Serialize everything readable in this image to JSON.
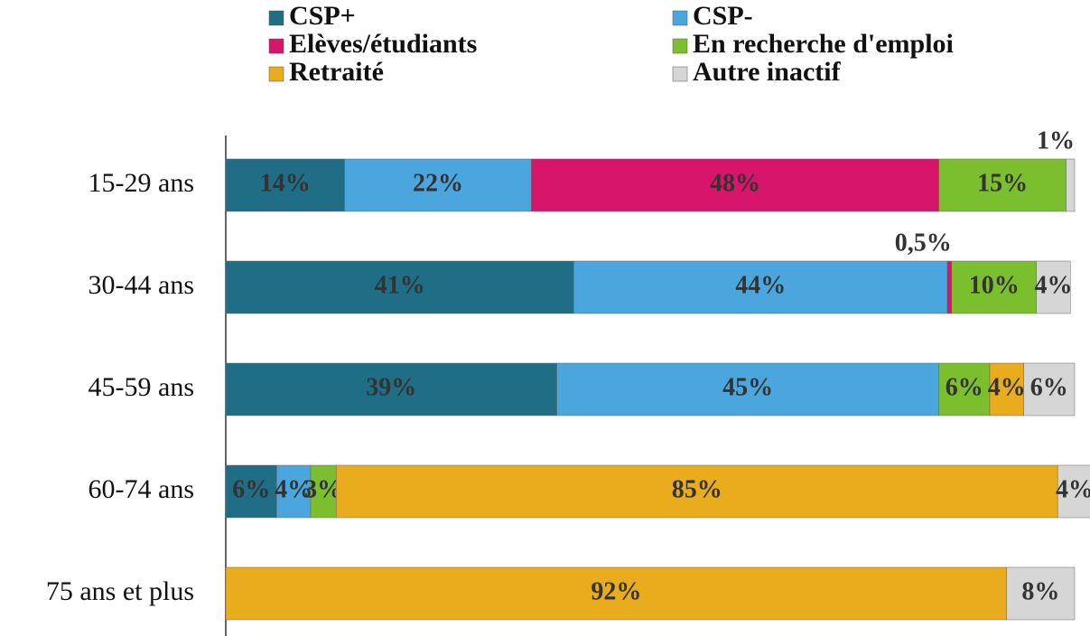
{
  "chart_data": {
    "type": "stacked_barh",
    "categories": [
      "15-29 ans",
      "30-44 ans",
      "45-59 ans",
      "60-74 ans",
      "75 ans et plus"
    ],
    "xlim": [
      0,
      100
    ],
    "legend": "top",
    "series": [
      {
        "name": "CSP+",
        "color": "#1f6e86",
        "values": [
          14,
          41,
          39,
          6,
          null
        ],
        "value_labels": [
          "14%",
          "41%",
          "39%",
          "6%",
          null
        ]
      },
      {
        "name": "CSP-",
        "color": "#4aa6dc",
        "values": [
          22,
          44,
          45,
          4,
          null
        ],
        "value_labels": [
          "22%",
          "44%",
          "45%",
          "4%",
          null
        ]
      },
      {
        "name": "Elèves/étudiants",
        "color": "#d6156b",
        "values": [
          48,
          0.5,
          null,
          null,
          null
        ],
        "value_labels": [
          "48%",
          "0,5%",
          null,
          null,
          null
        ]
      },
      {
        "name": "En recherche d'emploi",
        "color": "#7cbf2e",
        "values": [
          15,
          10,
          6,
          3,
          null
        ],
        "value_labels": [
          "15%",
          "10%",
          "6%",
          "3%",
          null
        ]
      },
      {
        "name": "Retraité",
        "color": "#e8ac1c",
        "values": [
          null,
          null,
          4,
          85,
          92
        ],
        "value_labels": [
          null,
          null,
          "4%",
          "85%",
          "92%"
        ]
      },
      {
        "name": "Autre inactif",
        "color": "#d6d6d6",
        "values": [
          1,
          4,
          6,
          4,
          8
        ],
        "value_labels": [
          "1%",
          "4%",
          "6%",
          "4%",
          "8%"
        ]
      }
    ]
  }
}
